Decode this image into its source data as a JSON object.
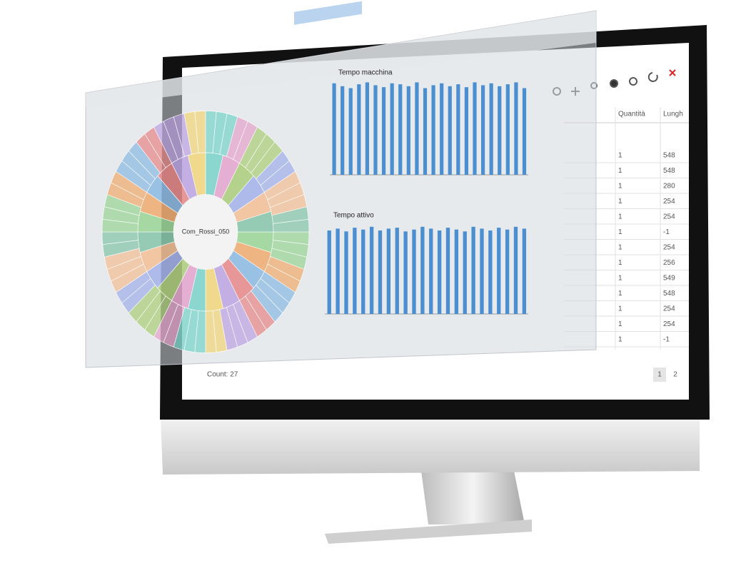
{
  "panel": {
    "center_label": "Com_Rossi_050"
  },
  "charts": [
    {
      "title": "Tempo macchina",
      "values": [
        95,
        92,
        90,
        94,
        96,
        93,
        91,
        95,
        94,
        92,
        96,
        90,
        93,
        95,
        92,
        94,
        91,
        96,
        93,
        95,
        92,
        94,
        96,
        90
      ]
    },
    {
      "title": "Tempo attivo",
      "values": [
        90,
        92,
        89,
        93,
        91,
        94,
        90,
        92,
        93,
        89,
        91,
        94,
        92,
        90,
        93,
        91,
        89,
        94,
        92,
        90,
        93,
        91,
        94,
        92
      ]
    }
  ],
  "table": {
    "headers": [
      "Quantità",
      "Lungh"
    ],
    "rows": [
      [
        "1",
        "548"
      ],
      [
        "1",
        "548"
      ],
      [
        "1",
        "280"
      ],
      [
        "1",
        "254"
      ],
      [
        "1",
        "254"
      ],
      [
        "1",
        "-1"
      ],
      [
        "1",
        "254"
      ],
      [
        "1",
        "256"
      ],
      [
        "1",
        "549"
      ],
      [
        "1",
        "548"
      ],
      [
        "1",
        "254"
      ],
      [
        "1",
        "254"
      ],
      [
        "1",
        "-1"
      ]
    ]
  },
  "footer": {
    "count": "Count: 27",
    "pages": [
      "1",
      "2"
    ]
  }
}
